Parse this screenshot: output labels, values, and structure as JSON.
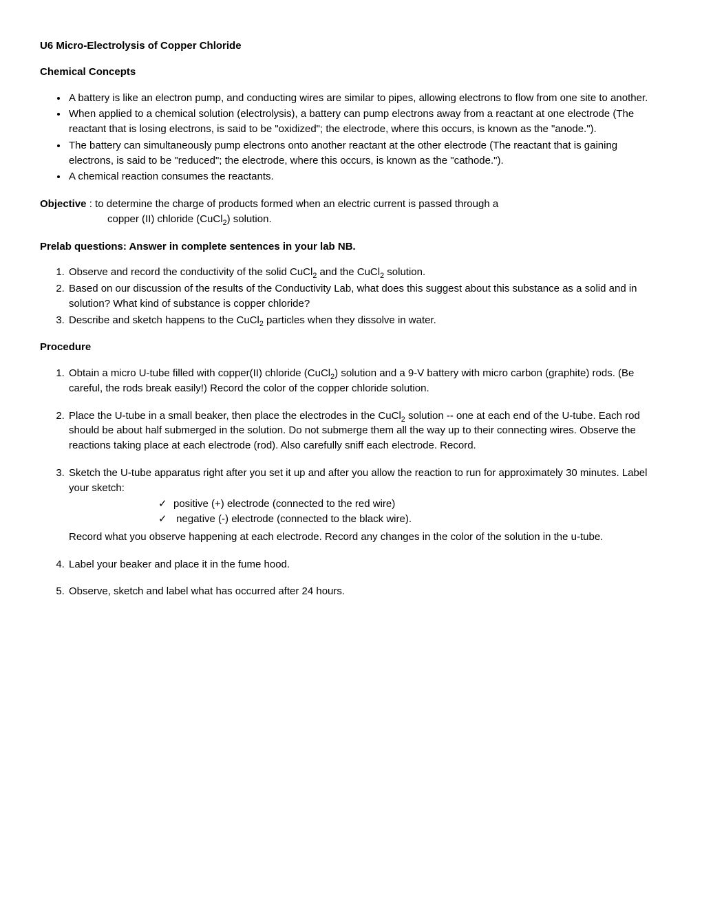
{
  "title": "U6  Micro-Electrolysis of Copper Chloride",
  "concepts_heading": "Chemical Concepts",
  "concepts": [
    "A battery is like an electron pump, and conducting wires are similar to pipes, allowing electrons to flow from one site to another.",
    "When applied to a chemical solution (electrolysis), a battery can pump electrons away from a reactant at one electrode (The reactant that is losing electrons, is said to be \"oxidized\"; the electrode, where this occurs, is known as the \"anode.\").",
    "The battery can simultaneously pump electrons onto another reactant at the other electrode (The reactant that is gaining electrons, is said to be \"reduced\"; the electrode, where this occurs, is known as the \"cathode.\").",
    "A chemical reaction consumes the reactants."
  ],
  "objective_label": "Objective",
  "objective_line1": " :  to determine the charge of products formed when an  electric current is passed through a",
  "objective_line2_pre": "copper (II) chloride (CuCl",
  "objective_line2_sub": "2",
  "objective_line2_post": ")  solution.",
  "prelab_heading": "Prelab questions:   Answer in complete sentences in your lab NB.",
  "prelab": {
    "q1_pre": "Observe and record the conductivity of the solid CuCl",
    "q1_sub1": "2",
    "q1_mid": "  and the CuCl",
    "q1_sub2": "2",
    "q1_post": " solution.",
    "q2": "Based on our discussion of the results of the Conductivity Lab, what does this suggest about this substance as a solid and in solution?  What kind of substance is copper chloride?",
    "q3_pre": "Describe and sketch happens to the CuCl",
    "q3_sub": "2",
    "q3_post": " particles when they dissolve in water."
  },
  "procedure_heading": "Procedure",
  "procedure": {
    "p1_pre": "Obtain a micro U-tube filled with copper(II) chloride (CuCl",
    "p1_sub": "2",
    "p1_post": ") solution and a 9-V battery with micro carbon (graphite) rods. (Be careful, the rods break easily!)   Record the color of the copper chloride solution.",
    "p2_pre": "Place the U-tube in a small beaker, then place the electrodes in the CuCl",
    "p2_sub": "2",
    "p2_post": " solution -- one at each end of the U-tube.   Each rod should be about half submerged in the solution. Do not submerge them all the way up to their connecting wires. Observe the reactions taking place at each electrode (rod).   Also carefully sniff each electrode.  Record.",
    "p3_intro": "Sketch the U-tube apparatus right after you set it up and after you allow the reaction to run for approximately 30 minutes.  Label your sketch:",
    "p3_check1": "positive (+) electrode (connected to the red wire)",
    "p3_check2": " negative (-) electrode (connected to the black wire).",
    "p3_tail": "Record what you observe happening at each electrode.  Record any changes in the color of the solution in the u-tube.",
    "p4": "Label your beaker and place it in the fume hood.",
    "p5": "Observe, sketch and label what has occurred after 24 hours."
  },
  "colors": {
    "text": "#000000",
    "background": "#ffffff"
  },
  "typography": {
    "font_family": "Comic Sans MS",
    "base_size_pt": 11
  }
}
